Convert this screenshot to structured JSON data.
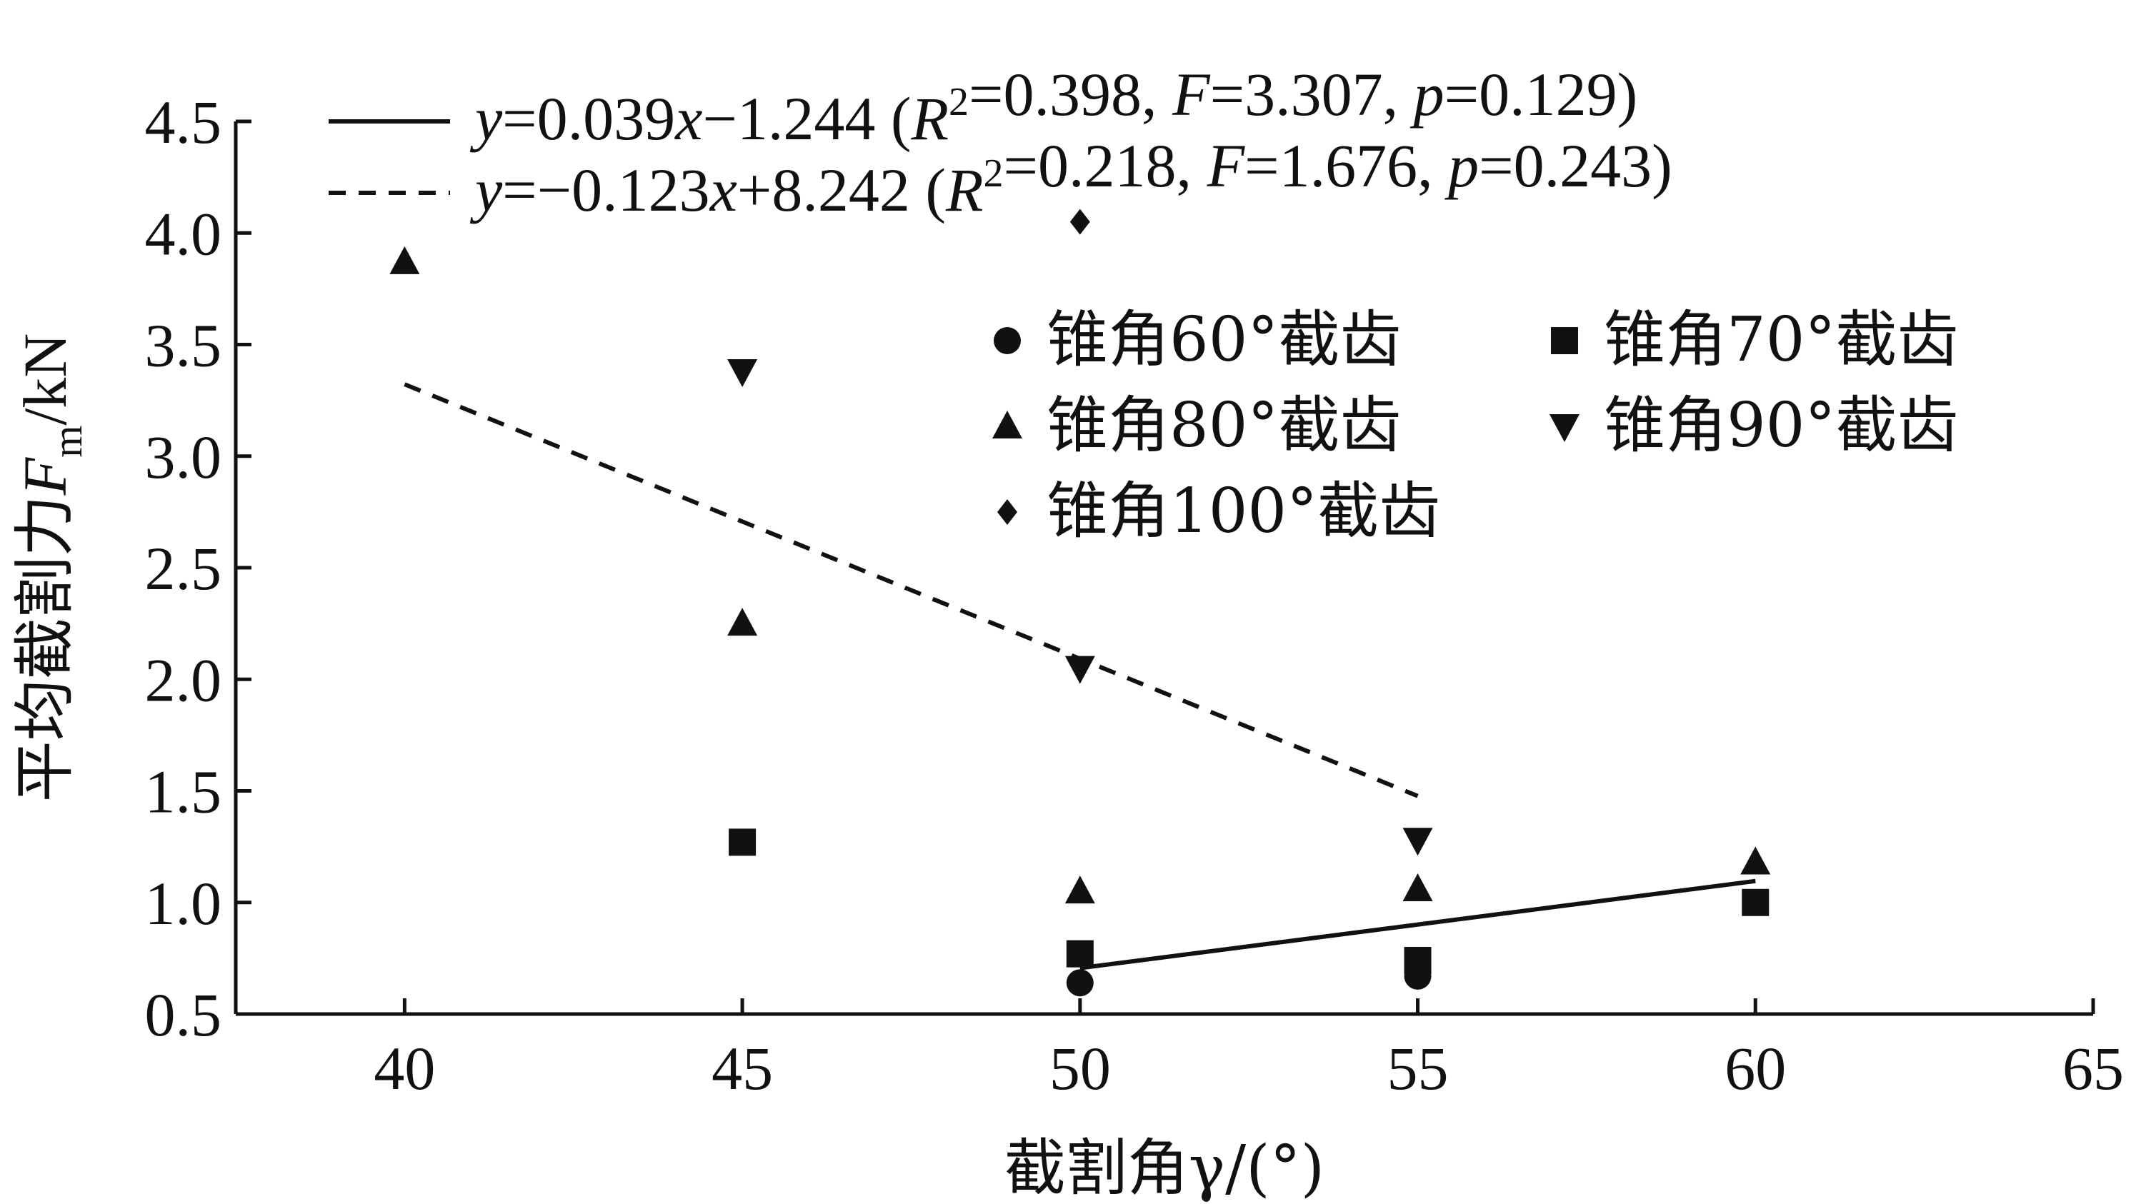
{
  "chart_data": {
    "type": "scatter",
    "title": "",
    "xlabel": "截割角γ/(°)",
    "ylabel": "平均截割力F_m/kN",
    "xlim": [
      37.5,
      65
    ],
    "ylim": [
      0.5,
      4.5
    ],
    "xticks": [
      "40",
      "45",
      "50",
      "55",
      "60",
      "65"
    ],
    "yticks": [
      "0.5",
      "1.0",
      "1.5",
      "2.0",
      "2.5",
      "3.0",
      "3.5",
      "4.0",
      "4.5"
    ],
    "legend_position": "right, inside",
    "series": [
      {
        "name": "锥角60°截齿",
        "marker": "circle",
        "points": [
          [
            50,
            0.64
          ],
          [
            55,
            0.67
          ]
        ]
      },
      {
        "name": "锥角70°截齿",
        "marker": "square",
        "points": [
          [
            45,
            1.27
          ],
          [
            50,
            0.77
          ],
          [
            55,
            0.74
          ],
          [
            60,
            1.0
          ]
        ]
      },
      {
        "name": "锥角80°截齿",
        "marker": "triangle-up",
        "points": [
          [
            40,
            3.87
          ],
          [
            45,
            2.25
          ],
          [
            50,
            1.05
          ],
          [
            55,
            1.06
          ],
          [
            60,
            1.18
          ]
        ]
      },
      {
        "name": "锥角90°截齿",
        "marker": "triangle-down",
        "points": [
          [
            45,
            3.38
          ],
          [
            50,
            2.05
          ],
          [
            55,
            1.28
          ]
        ]
      },
      {
        "name": "锥角100°截齿",
        "marker": "diamond",
        "points": [
          [
            50,
            4.05
          ]
        ]
      }
    ],
    "fit_lines": [
      {
        "style": "solid",
        "x_range": [
          50,
          60
        ],
        "slope": 0.039,
        "intercept": -1.244,
        "label": "y=0.039x−1.244 (R2=0.398, F=3.307, p=0.129)"
      },
      {
        "style": "dashed",
        "x_range": [
          40,
          55
        ],
        "slope": -0.123,
        "intercept": 8.242,
        "label": "y=−0.123x+8.242 (R2=0.218, F=1.676, p=0.243)"
      }
    ]
  },
  "colors": {
    "ink": "#111111",
    "background": "#ffffff"
  }
}
